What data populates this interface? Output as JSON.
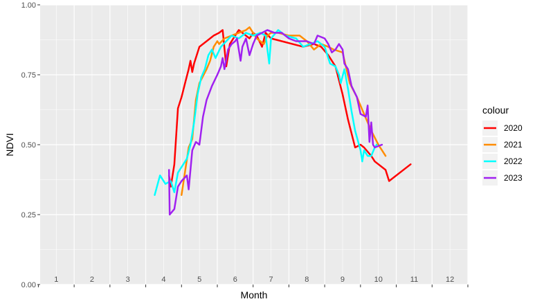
{
  "chart_data": {
    "type": "line",
    "title": "",
    "xlabel": "Month",
    "ylabel": "NDVI",
    "xlim": [
      0.55,
      12.5
    ],
    "ylim": [
      0,
      1
    ],
    "x_ticks": [
      "1",
      "2",
      "3",
      "4",
      "5",
      "6",
      "7",
      "8",
      "9",
      "10",
      "11",
      "12"
    ],
    "y_ticks": [
      "0.00",
      "0.25",
      "0.50",
      "0.75",
      "1.00"
    ],
    "grid": true,
    "legend": {
      "title": "colour",
      "position": "right"
    },
    "series": [
      {
        "name": "2020",
        "color": "#ff0000",
        "points": [
          [
            4.15,
            0.39
          ],
          [
            4.2,
            0.35
          ],
          [
            4.3,
            0.43
          ],
          [
            4.4,
            0.63
          ],
          [
            4.5,
            0.67
          ],
          [
            4.6,
            0.72
          ],
          [
            4.7,
            0.77
          ],
          [
            4.75,
            0.8
          ],
          [
            4.8,
            0.76
          ],
          [
            4.85,
            0.79
          ],
          [
            5.0,
            0.85
          ],
          [
            5.2,
            0.87
          ],
          [
            5.4,
            0.89
          ],
          [
            5.55,
            0.9
          ],
          [
            5.65,
            0.91
          ],
          [
            5.75,
            0.78
          ],
          [
            5.85,
            0.86
          ],
          [
            6.0,
            0.89
          ],
          [
            6.1,
            0.91
          ],
          [
            6.2,
            0.9
          ],
          [
            6.4,
            0.88
          ],
          [
            6.5,
            0.9
          ],
          [
            6.6,
            0.89
          ],
          [
            6.75,
            0.85
          ],
          [
            6.85,
            0.9
          ],
          [
            7.0,
            0.88
          ],
          [
            7.3,
            0.87
          ],
          [
            7.6,
            0.86
          ],
          [
            7.9,
            0.85
          ],
          [
            8.2,
            0.86
          ],
          [
            8.4,
            0.85
          ],
          [
            8.6,
            0.82
          ],
          [
            8.8,
            0.78
          ],
          [
            9.0,
            0.68
          ],
          [
            9.15,
            0.59
          ],
          [
            9.35,
            0.49
          ],
          [
            9.5,
            0.5
          ],
          [
            9.6,
            0.49
          ],
          [
            9.8,
            0.46
          ],
          [
            9.9,
            0.44
          ],
          [
            10.2,
            0.41
          ],
          [
            10.3,
            0.37
          ],
          [
            10.9,
            0.43
          ]
        ]
      },
      {
        "name": "2021",
        "color": "#ff8c00",
        "points": [
          [
            4.5,
            0.32
          ],
          [
            4.7,
            0.49
          ],
          [
            4.8,
            0.52
          ],
          [
            4.9,
            0.66
          ],
          [
            5.0,
            0.72
          ],
          [
            5.2,
            0.77
          ],
          [
            5.3,
            0.8
          ],
          [
            5.4,
            0.85
          ],
          [
            5.5,
            0.87
          ],
          [
            5.55,
            0.86
          ],
          [
            5.7,
            0.88
          ],
          [
            5.9,
            0.89
          ],
          [
            6.1,
            0.9
          ],
          [
            6.3,
            0.91
          ],
          [
            6.4,
            0.92
          ],
          [
            6.5,
            0.9
          ],
          [
            6.6,
            0.88
          ],
          [
            6.7,
            0.87
          ],
          [
            6.8,
            0.86
          ],
          [
            6.9,
            0.89
          ],
          [
            7.0,
            0.9
          ],
          [
            7.2,
            0.9
          ],
          [
            7.5,
            0.89
          ],
          [
            7.8,
            0.89
          ],
          [
            8.0,
            0.87
          ],
          [
            8.2,
            0.84
          ],
          [
            8.4,
            0.86
          ],
          [
            8.6,
            0.85
          ],
          [
            8.75,
            0.84
          ],
          [
            9.0,
            0.83
          ],
          [
            9.2,
            0.72
          ],
          [
            9.4,
            0.67
          ],
          [
            9.6,
            0.61
          ],
          [
            9.8,
            0.55
          ],
          [
            10.0,
            0.5
          ],
          [
            10.1,
            0.48
          ],
          [
            10.2,
            0.46
          ]
        ]
      },
      {
        "name": "2022",
        "color": "#00ffff",
        "points": [
          [
            3.75,
            0.32
          ],
          [
            3.9,
            0.39
          ],
          [
            4.05,
            0.36
          ],
          [
            4.2,
            0.37
          ],
          [
            4.3,
            0.33
          ],
          [
            4.4,
            0.4
          ],
          [
            4.55,
            0.43
          ],
          [
            4.65,
            0.45
          ],
          [
            4.75,
            0.5
          ],
          [
            4.85,
            0.58
          ],
          [
            4.95,
            0.68
          ],
          [
            5.05,
            0.74
          ],
          [
            5.15,
            0.77
          ],
          [
            5.25,
            0.82
          ],
          [
            5.35,
            0.84
          ],
          [
            5.45,
            0.81
          ],
          [
            5.6,
            0.85
          ],
          [
            5.75,
            0.87
          ],
          [
            5.9,
            0.89
          ],
          [
            6.1,
            0.88
          ],
          [
            6.3,
            0.9
          ],
          [
            6.5,
            0.89
          ],
          [
            6.7,
            0.9
          ],
          [
            6.85,
            0.89
          ],
          [
            6.95,
            0.79
          ],
          [
            7.0,
            0.88
          ],
          [
            7.2,
            0.91
          ],
          [
            7.4,
            0.89
          ],
          [
            7.7,
            0.88
          ],
          [
            7.9,
            0.85
          ],
          [
            8.1,
            0.86
          ],
          [
            8.3,
            0.87
          ],
          [
            8.5,
            0.85
          ],
          [
            8.65,
            0.79
          ],
          [
            8.8,
            0.78
          ],
          [
            8.9,
            0.75
          ],
          [
            8.95,
            0.72
          ],
          [
            9.05,
            0.77
          ],
          [
            9.15,
            0.7
          ],
          [
            9.25,
            0.62
          ],
          [
            9.35,
            0.55
          ],
          [
            9.5,
            0.48
          ],
          [
            9.55,
            0.44
          ],
          [
            9.6,
            0.48
          ],
          [
            9.7,
            0.46
          ],
          [
            9.8,
            0.46
          ],
          [
            9.9,
            0.49
          ],
          [
            9.95,
            0.5
          ]
        ]
      },
      {
        "name": "2023",
        "color": "#a020f0",
        "points": [
          [
            4.15,
            0.41
          ],
          [
            4.17,
            0.25
          ],
          [
            4.3,
            0.27
          ],
          [
            4.4,
            0.35
          ],
          [
            4.5,
            0.37
          ],
          [
            4.65,
            0.39
          ],
          [
            4.7,
            0.34
          ],
          [
            4.8,
            0.48
          ],
          [
            4.9,
            0.51
          ],
          [
            5.0,
            0.5
          ],
          [
            5.1,
            0.6
          ],
          [
            5.2,
            0.66
          ],
          [
            5.35,
            0.71
          ],
          [
            5.5,
            0.75
          ],
          [
            5.6,
            0.78
          ],
          [
            5.65,
            0.81
          ],
          [
            5.7,
            0.77
          ],
          [
            5.8,
            0.84
          ],
          [
            5.9,
            0.86
          ],
          [
            6.0,
            0.87
          ],
          [
            6.05,
            0.88
          ],
          [
            6.15,
            0.8
          ],
          [
            6.2,
            0.85
          ],
          [
            6.3,
            0.88
          ],
          [
            6.4,
            0.82
          ],
          [
            6.5,
            0.86
          ],
          [
            6.6,
            0.89
          ],
          [
            6.75,
            0.9
          ],
          [
            6.9,
            0.91
          ],
          [
            7.1,
            0.9
          ],
          [
            7.3,
            0.9
          ],
          [
            7.5,
            0.88
          ],
          [
            7.7,
            0.87
          ],
          [
            7.9,
            0.87
          ],
          [
            8.0,
            0.87
          ],
          [
            8.2,
            0.86
          ],
          [
            8.3,
            0.89
          ],
          [
            8.5,
            0.88
          ],
          [
            8.6,
            0.86
          ],
          [
            8.7,
            0.83
          ],
          [
            8.8,
            0.84
          ],
          [
            8.9,
            0.86
          ],
          [
            9.0,
            0.84
          ],
          [
            9.05,
            0.79
          ],
          [
            9.15,
            0.77
          ],
          [
            9.25,
            0.71
          ],
          [
            9.4,
            0.67
          ],
          [
            9.5,
            0.61
          ],
          [
            9.65,
            0.6
          ],
          [
            9.7,
            0.64
          ],
          [
            9.75,
            0.51
          ],
          [
            9.8,
            0.58
          ],
          [
            9.85,
            0.5
          ],
          [
            9.9,
            0.49
          ],
          [
            10.1,
            0.5
          ]
        ]
      }
    ]
  }
}
